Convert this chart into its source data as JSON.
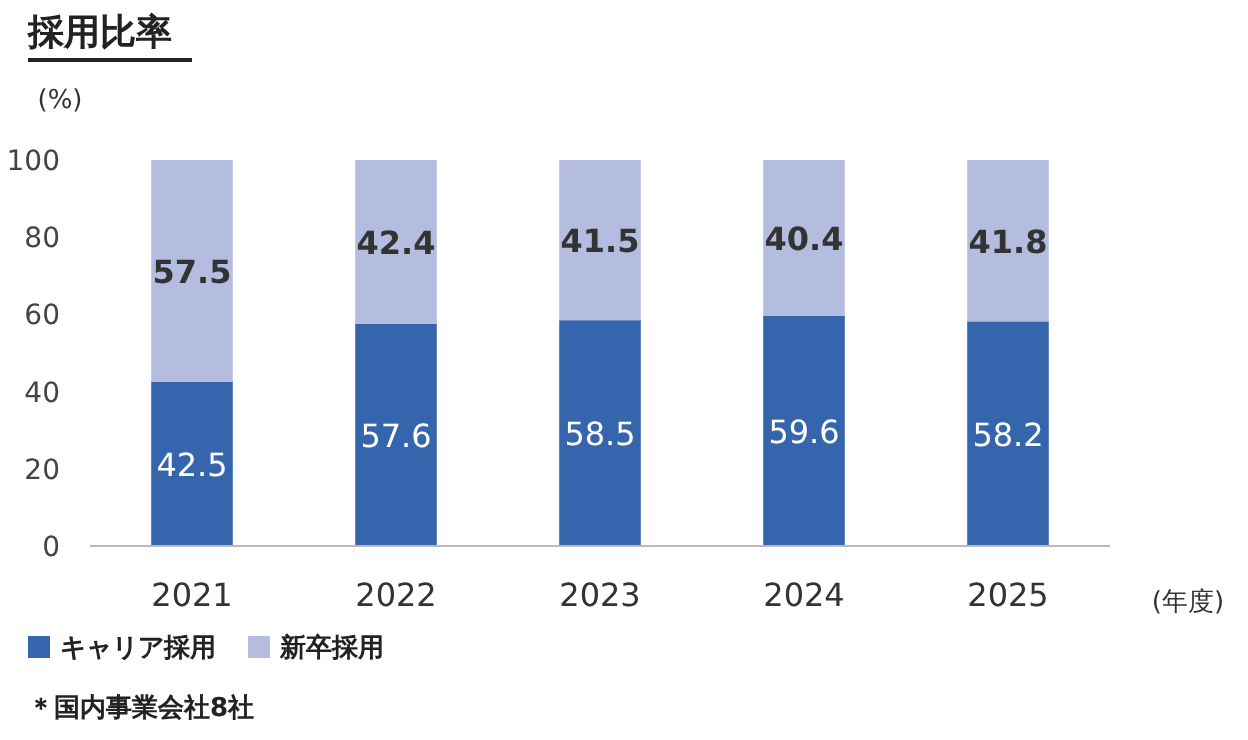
{
  "chart_data": {
    "type": "bar",
    "title": "採用比率",
    "ylabel": "(%)",
    "xlabel": "(年度)",
    "stacked": true,
    "categories": [
      "2021",
      "2022",
      "2023",
      "2024",
      "2025"
    ],
    "series": [
      {
        "name": "キャリア採用",
        "color": "#3565ad",
        "values": [
          42.5,
          57.6,
          58.5,
          59.6,
          58.2
        ]
      },
      {
        "name": "新卒採用",
        "color": "#b4bce0",
        "values": [
          57.5,
          42.4,
          41.5,
          40.4,
          41.8
        ]
      }
    ],
    "ylim": [
      0,
      100
    ],
    "yticks": [
      0,
      20,
      40,
      60,
      80,
      100
    ],
    "grid": false,
    "legend": "bottom left",
    "data_labels": true,
    "annotations": [
      "＊国内事業会社8社"
    ]
  }
}
